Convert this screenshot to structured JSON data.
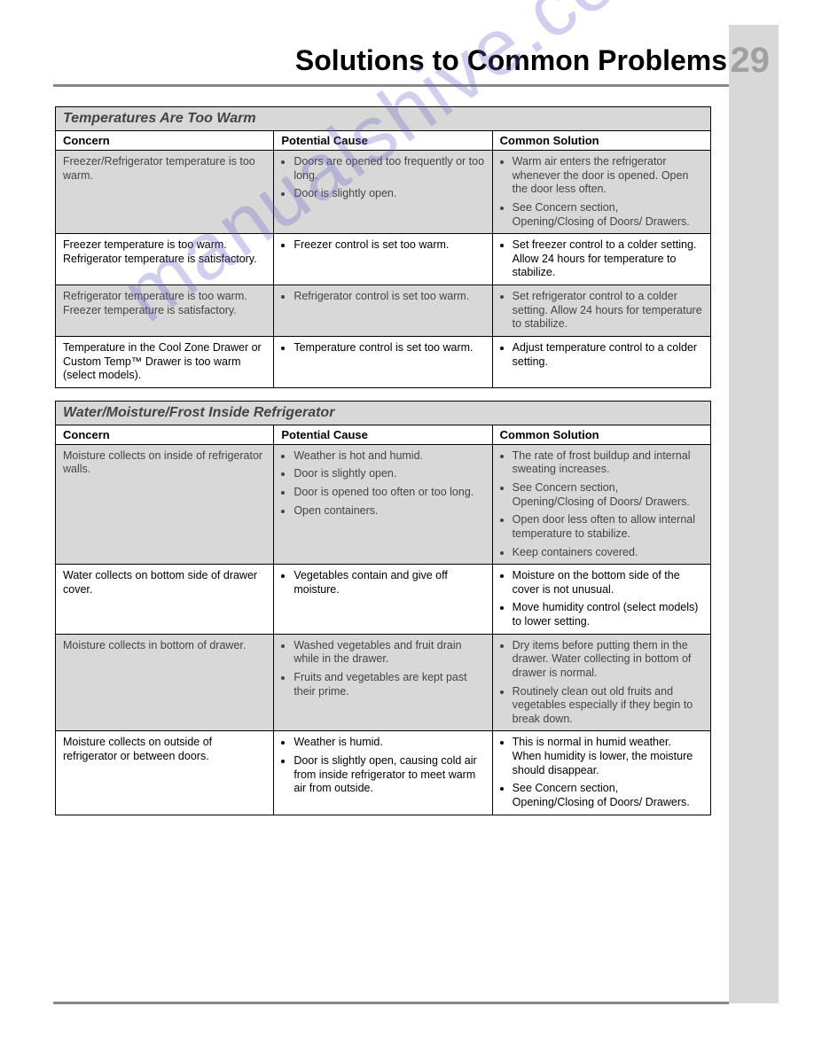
{
  "page_number": "29",
  "title": "Solutions to Common Problems",
  "watermark": "manualshive.com",
  "col_headers": {
    "concern": "Concern",
    "cause": "Potential Cause",
    "solution": "Common Solution"
  },
  "tables": [
    {
      "section_title": "Temperatures Are Too Warm",
      "rows": [
        {
          "shaded": true,
          "concern": "Freezer/Refrigerator temperature is too warm.",
          "causes": [
            "Doors are opened too frequently or too long.",
            "Door is slightly open."
          ],
          "solutions": [
            "Warm air enters the refrigerator whenever the door is opened. Open the door less often.",
            "See Concern section, Opening/Closing of Doors/ Drawers."
          ]
        },
        {
          "shaded": false,
          "concern": "Freezer temperature is too warm. Refrigerator temperature is satisfactory.",
          "causes": [
            "Freezer control is set too warm."
          ],
          "solutions": [
            "Set freezer control to a colder setting. Allow 24 hours for temperature to stabilize."
          ]
        },
        {
          "shaded": true,
          "concern": "Refrigerator temperature is too warm. Freezer temperature is satisfactory.",
          "causes": [
            "Refrigerator control is set too warm."
          ],
          "solutions": [
            "Set refrigerator control to a colder setting. Allow 24 hours for temperature to stabilize."
          ]
        },
        {
          "shaded": false,
          "concern": "Temperature in the Cool Zone Drawer or Custom Temp™ Drawer is too warm (select models).",
          "causes": [
            "Temperature control is set too warm."
          ],
          "solutions": [
            "Adjust temperature control to a colder setting."
          ]
        }
      ]
    },
    {
      "section_title": "Water/Moisture/Frost Inside Refrigerator",
      "rows": [
        {
          "shaded": true,
          "concern": "Moisture collects on inside of refrigerator walls.",
          "causes": [
            "Weather is hot and humid.",
            "Door is slightly open.",
            "Door is opened too often or too long.",
            "Open containers."
          ],
          "solutions": [
            "The rate of frost buildup and internal sweating increases.",
            "See Concern section, Opening/Closing of Doors/ Drawers.",
            "Open door less often to allow internal temperature to stabilize.",
            "Keep containers covered."
          ]
        },
        {
          "shaded": false,
          "concern": "Water collects on bottom side of drawer cover.",
          "causes": [
            "Vegetables contain and give off moisture."
          ],
          "solutions": [
            "Moisture on the bottom side of the cover is not unusual.",
            "Move humidity control (select models) to lower setting."
          ]
        },
        {
          "shaded": true,
          "concern": "Moisture collects in bottom of drawer.",
          "causes": [
            "Washed vegetables and fruit drain while in the drawer.",
            "Fruits and vegetables are kept past their prime."
          ],
          "solutions": [
            "Dry items before putting them in the drawer. Water collecting in bottom of drawer is normal.",
            "Routinely clean out old fruits and vegetables especially if they begin to break down."
          ]
        },
        {
          "shaded": false,
          "concern": "Moisture collects on outside of refrigerator or between doors.",
          "causes": [
            "Weather is humid.",
            "Door is slightly open, causing cold air from inside refrigerator to meet warm air from outside."
          ],
          "solutions": [
            "This is normal in humid weather.  When humidity is lower, the moisture should disappear.",
            "See Concern section, Opening/Closing of Doors/ Drawers."
          ]
        }
      ]
    }
  ]
}
